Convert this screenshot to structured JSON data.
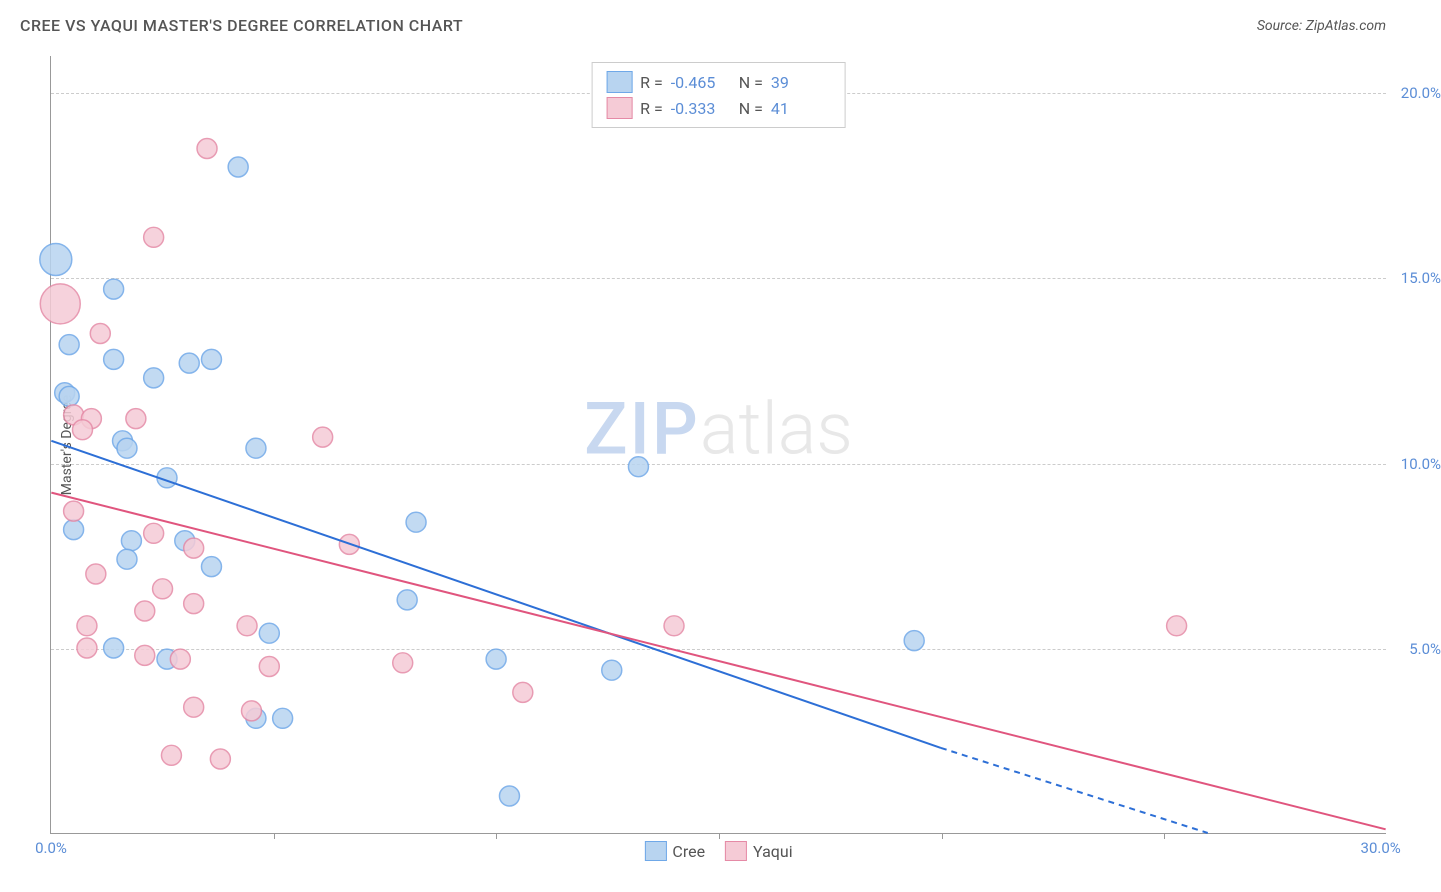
{
  "header": {
    "title": "CREE VS YAQUI MASTER'S DEGREE CORRELATION CHART",
    "source": "Source: ZipAtlas.com"
  },
  "chart": {
    "type": "scatter",
    "ylabel": "Master's Degree",
    "background_color": "#ffffff",
    "grid_color": "#cccccc",
    "axis_color": "#999999",
    "tick_color": "#5b8dd6",
    "xlim": [
      0,
      30
    ],
    "ylim": [
      0,
      21
    ],
    "yticks": [
      {
        "v": 5,
        "label": "5.0%"
      },
      {
        "v": 10,
        "label": "10.0%"
      },
      {
        "v": 15,
        "label": "15.0%"
      },
      {
        "v": 20,
        "label": "20.0%"
      }
    ],
    "xticks": [
      {
        "v": 0,
        "label": "0.0%"
      },
      {
        "v": 5,
        "label": ""
      },
      {
        "v": 10,
        "label": ""
      },
      {
        "v": 15,
        "label": ""
      },
      {
        "v": 20,
        "label": ""
      },
      {
        "v": 25,
        "label": ""
      },
      {
        "v": 30,
        "label": "30.0%"
      }
    ],
    "watermark": {
      "part1": "ZIP",
      "part2": "atlas"
    },
    "series": [
      {
        "name": "Cree",
        "color_fill": "#b8d4f0",
        "color_stroke": "#6fa8e8",
        "marker_r": 10,
        "trend": {
          "x1": 0,
          "y1": 10.6,
          "x2": 20,
          "y2": 2.3,
          "dash_from_x": 20,
          "dash_to_x": 26,
          "dash_to_y": 0,
          "stroke": "#2d6fd6",
          "width": 2
        },
        "points": [
          {
            "x": 0.1,
            "y": 15.5,
            "r": 16
          },
          {
            "x": 1.4,
            "y": 14.7,
            "r": 10
          },
          {
            "x": 0.4,
            "y": 13.2,
            "r": 10
          },
          {
            "x": 1.4,
            "y": 12.8,
            "r": 10
          },
          {
            "x": 3.1,
            "y": 12.7,
            "r": 10
          },
          {
            "x": 2.3,
            "y": 12.3,
            "r": 10
          },
          {
            "x": 0.3,
            "y": 11.9,
            "r": 10
          },
          {
            "x": 0.4,
            "y": 11.8,
            "r": 10
          },
          {
            "x": 4.2,
            "y": 18.0,
            "r": 10
          },
          {
            "x": 1.6,
            "y": 10.6,
            "r": 10
          },
          {
            "x": 1.7,
            "y": 10.4,
            "r": 10
          },
          {
            "x": 4.6,
            "y": 10.4,
            "r": 10
          },
          {
            "x": 2.6,
            "y": 9.6,
            "r": 10
          },
          {
            "x": 0.5,
            "y": 8.2,
            "r": 10
          },
          {
            "x": 1.8,
            "y": 7.9,
            "r": 10
          },
          {
            "x": 3.0,
            "y": 7.9,
            "r": 10
          },
          {
            "x": 8.2,
            "y": 8.4,
            "r": 10
          },
          {
            "x": 1.7,
            "y": 7.4,
            "r": 10
          },
          {
            "x": 3.6,
            "y": 7.2,
            "r": 10
          },
          {
            "x": 8.0,
            "y": 6.3,
            "r": 10
          },
          {
            "x": 4.9,
            "y": 5.4,
            "r": 10
          },
          {
            "x": 1.4,
            "y": 5.0,
            "r": 10
          },
          {
            "x": 2.6,
            "y": 4.7,
            "r": 10
          },
          {
            "x": 10.0,
            "y": 4.7,
            "r": 10
          },
          {
            "x": 12.6,
            "y": 4.4,
            "r": 10
          },
          {
            "x": 19.4,
            "y": 5.2,
            "r": 10
          },
          {
            "x": 4.6,
            "y": 3.1,
            "r": 10
          },
          {
            "x": 5.2,
            "y": 3.1,
            "r": 10
          },
          {
            "x": 10.3,
            "y": 1.0,
            "r": 10
          },
          {
            "x": 13.2,
            "y": 9.9,
            "r": 10
          },
          {
            "x": 3.6,
            "y": 12.8,
            "r": 10
          }
        ]
      },
      {
        "name": "Yaqui",
        "color_fill": "#f5cbd6",
        "color_stroke": "#e58aa6",
        "marker_r": 10,
        "trend": {
          "x1": 0,
          "y1": 9.2,
          "x2": 30,
          "y2": 0.1,
          "stroke": "#e0557e",
          "width": 2
        },
        "points": [
          {
            "x": 0.2,
            "y": 14.3,
            "r": 20
          },
          {
            "x": 2.3,
            "y": 16.1,
            "r": 10
          },
          {
            "x": 1.1,
            "y": 13.5,
            "r": 10
          },
          {
            "x": 3.5,
            "y": 18.5,
            "r": 10
          },
          {
            "x": 0.5,
            "y": 11.3,
            "r": 10
          },
          {
            "x": 0.9,
            "y": 11.2,
            "r": 10
          },
          {
            "x": 1.9,
            "y": 11.2,
            "r": 10
          },
          {
            "x": 0.7,
            "y": 10.9,
            "r": 10
          },
          {
            "x": 6.1,
            "y": 10.7,
            "r": 10
          },
          {
            "x": 0.5,
            "y": 8.7,
            "r": 10
          },
          {
            "x": 2.3,
            "y": 8.1,
            "r": 10
          },
          {
            "x": 6.7,
            "y": 7.8,
            "r": 10
          },
          {
            "x": 3.2,
            "y": 7.7,
            "r": 10
          },
          {
            "x": 1.0,
            "y": 7.0,
            "r": 10
          },
          {
            "x": 2.5,
            "y": 6.6,
            "r": 10
          },
          {
            "x": 3.2,
            "y": 6.2,
            "r": 10
          },
          {
            "x": 0.8,
            "y": 5.6,
            "r": 10
          },
          {
            "x": 2.1,
            "y": 6.0,
            "r": 10
          },
          {
            "x": 4.4,
            "y": 5.6,
            "r": 10
          },
          {
            "x": 0.8,
            "y": 5.0,
            "r": 10
          },
          {
            "x": 2.1,
            "y": 4.8,
            "r": 10
          },
          {
            "x": 2.9,
            "y": 4.7,
            "r": 10
          },
          {
            "x": 4.9,
            "y": 4.5,
            "r": 10
          },
          {
            "x": 7.9,
            "y": 4.6,
            "r": 10
          },
          {
            "x": 14.0,
            "y": 5.6,
            "r": 10
          },
          {
            "x": 25.3,
            "y": 5.6,
            "r": 10
          },
          {
            "x": 10.6,
            "y": 3.8,
            "r": 10
          },
          {
            "x": 3.2,
            "y": 3.4,
            "r": 10
          },
          {
            "x": 4.5,
            "y": 3.3,
            "r": 10
          },
          {
            "x": 2.7,
            "y": 2.1,
            "r": 10
          },
          {
            "x": 3.8,
            "y": 2.0,
            "r": 10
          }
        ]
      }
    ],
    "legend_top": [
      {
        "swatch_fill": "#b8d4f0",
        "swatch_stroke": "#6fa8e8",
        "r_label": "R =",
        "r_val": "-0.465",
        "n_label": "N =",
        "n_val": "39"
      },
      {
        "swatch_fill": "#f5cbd6",
        "swatch_stroke": "#e58aa6",
        "r_label": "R =",
        "r_val": "-0.333",
        "n_label": "N =",
        "n_val": "41"
      }
    ],
    "legend_bottom": [
      {
        "swatch_fill": "#b8d4f0",
        "swatch_stroke": "#6fa8e8",
        "label": "Cree"
      },
      {
        "swatch_fill": "#f5cbd6",
        "swatch_stroke": "#e58aa6",
        "label": "Yaqui"
      }
    ]
  }
}
